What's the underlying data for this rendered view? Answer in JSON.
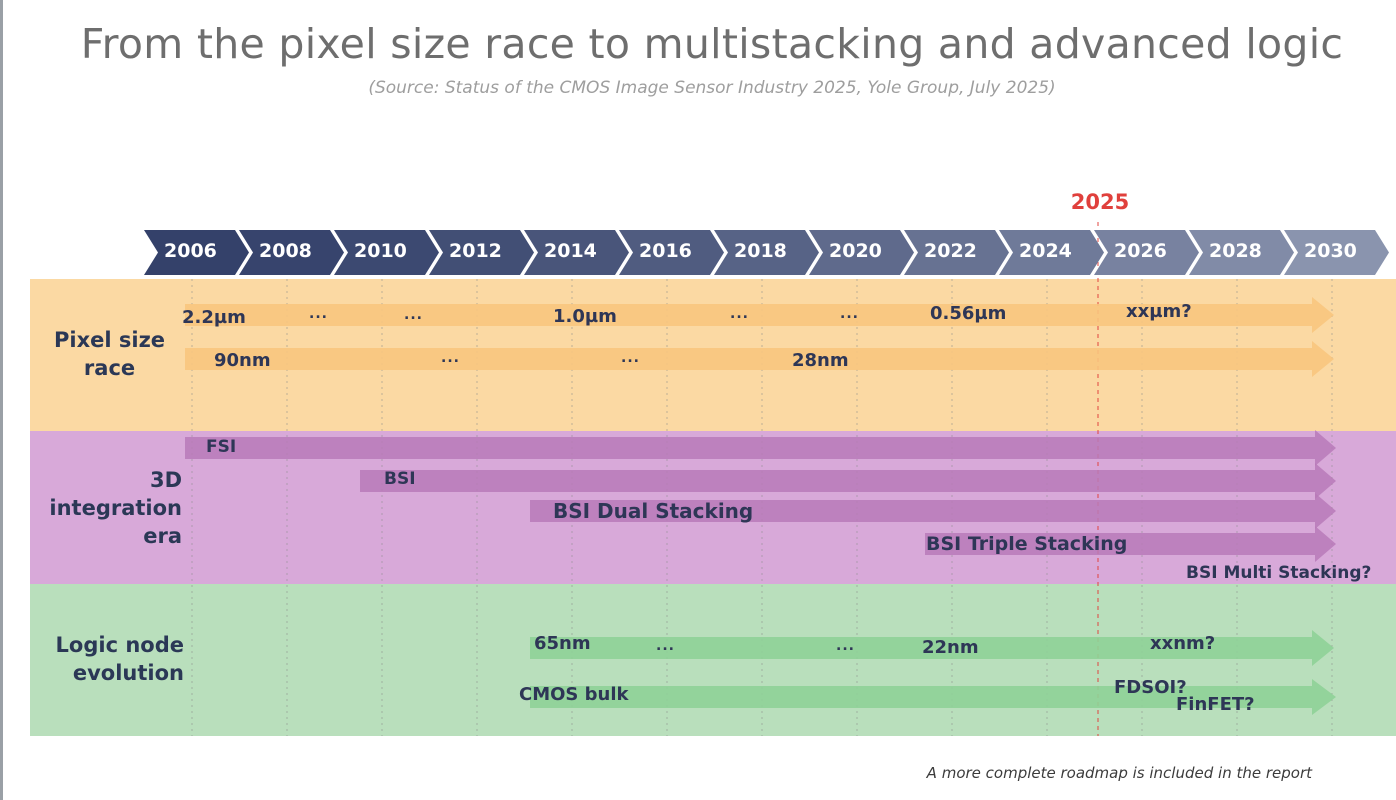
{
  "title": "From the pixel size race to multistacking and advanced logic",
  "subtitle": "(Source: Status of the CMOS Image Sensor Industry 2025, Yole Group, July 2025)",
  "highlight_year": "2025",
  "timeline": {
    "years": [
      "2006",
      "2008",
      "2010",
      "2012",
      "2014",
      "2016",
      "2018",
      "2020",
      "2022",
      "2024",
      "2026",
      "2028",
      "2030"
    ]
  },
  "bands": {
    "pixel": {
      "label_line1": "Pixel size",
      "label_line2": "race",
      "color": "#fbd9a3"
    },
    "integration": {
      "label_line1": "3D",
      "label_line2": "integration",
      "label_line3": "era",
      "color": "#d8a9d9"
    },
    "logic": {
      "label_line1": "Logic node",
      "label_line2": "evolution",
      "color": "#b9dfbc"
    }
  },
  "pixel_rows": {
    "pitch": {
      "labels": [
        "2.2µm",
        "...",
        "...",
        "1.0µm",
        "...",
        "...",
        "0.56µm",
        "xxµm?"
      ]
    },
    "node": {
      "labels": [
        "90nm",
        "...",
        "...",
        "28nm"
      ]
    }
  },
  "integration_rows": {
    "fsi": "FSI",
    "bsi": "BSI",
    "dual": "BSI Dual Stacking",
    "triple": "BSI Triple Stacking",
    "multi": "BSI Multi Stacking?"
  },
  "logic_rows": {
    "node": {
      "labels": [
        "65nm",
        "...",
        "...",
        "22nm",
        "xxnm?"
      ]
    },
    "process": {
      "cmos": "CMOS bulk",
      "fdsoi": "FDSOI?",
      "finfet": "FinFET?"
    }
  },
  "footnote": "A more complete roadmap is included in the report",
  "colors": {
    "timeline_dark": "#3d4a6b",
    "timeline_light": "#7d87a3",
    "pixel_arrow": "#f8c57e",
    "integration_arrow": "#b97ab9",
    "logic_arrow": "#8fd197",
    "highlight": "#e0403c"
  }
}
